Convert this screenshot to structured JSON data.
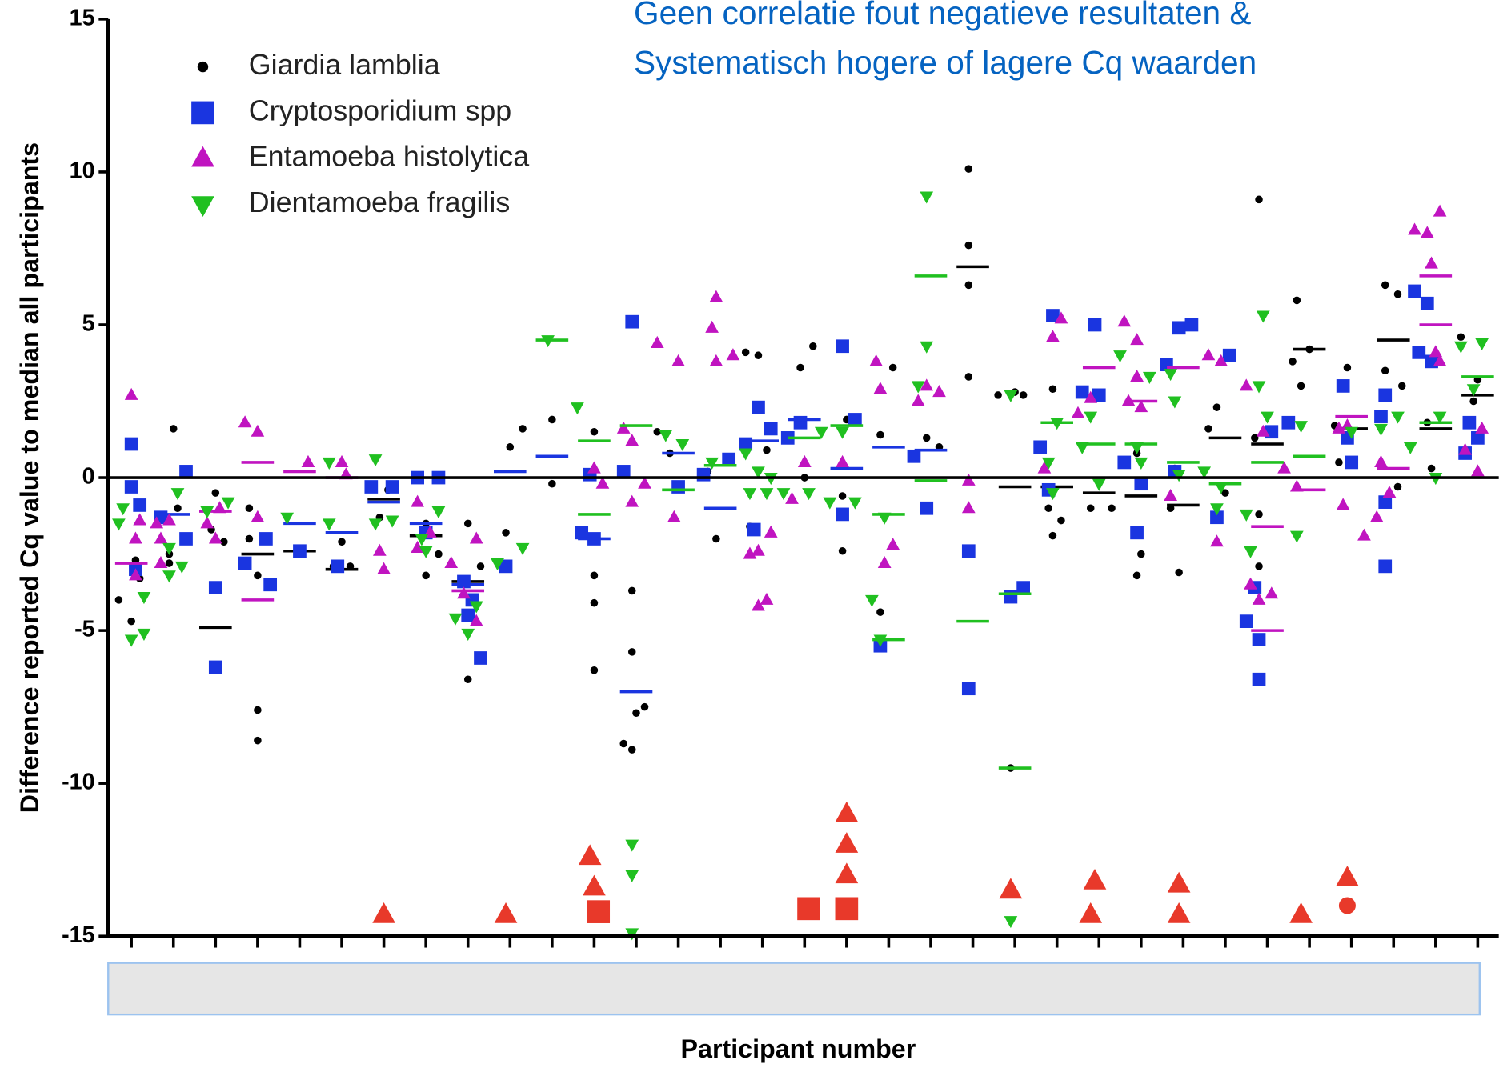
{
  "chart_data": {
    "type": "scatter",
    "annotation": [
      "Geen correlatie fout negatieve resultaten &",
      "Systematisch hogere of lagere Cq waarden"
    ],
    "xlabel": "Participant number",
    "ylabel": "Difference reported Cq value to median all participants",
    "xlim": [
      0.45,
      33.5
    ],
    "xticks": [
      1,
      2,
      3,
      4,
      5,
      6,
      7,
      8,
      9,
      10,
      11,
      12,
      13,
      14,
      15,
      16,
      17,
      18,
      19,
      20,
      21,
      22,
      23,
      24,
      25,
      26,
      27,
      28,
      29,
      30,
      31,
      32,
      33
    ],
    "ylim": [
      -15,
      15
    ],
    "yticks": [
      15,
      10,
      5,
      0,
      -5,
      -10,
      -15
    ],
    "reference_line": 0,
    "series": [
      {
        "name": "Giardia lamblia",
        "color": "#000000",
        "marker": "circle",
        "x": [
          0.7,
          1.0,
          1.2,
          1.1,
          2.0,
          1.9,
          2.1,
          1.9,
          2.9,
          3.0,
          3.2,
          4.0,
          4.0,
          3.8,
          3.8,
          4.0,
          6.0,
          5.8,
          6.2,
          6.9,
          7.1,
          8.0,
          8.0,
          8.3,
          9.0,
          9.0,
          9.3,
          9.9,
          10.0,
          10.3,
          11.0,
          11.0,
          12.0,
          12.0,
          12.0,
          12.0,
          12.7,
          12.9,
          12.9,
          12.9,
          13.2,
          13.0,
          13.5,
          13.8,
          14.9,
          14.7,
          15.6,
          15.9,
          15.7,
          16.1,
          16.9,
          17.2,
          17.0,
          17.9,
          18.0,
          17.9,
          18.8,
          19.1,
          18.8,
          19.9,
          20.2,
          20.9,
          20.9,
          20.9,
          20.9,
          21.6,
          22.0,
          21.9,
          22.2,
          22.9,
          22.9,
          23.1,
          22.8,
          23.8,
          24.3,
          24.9,
          25.0,
          24.9,
          25.9,
          25.8,
          25.7,
          26.8,
          27.0,
          26.6,
          27.8,
          27.8,
          27.8,
          27.7,
          28.7,
          28.8,
          28.6,
          29.0,
          29.9,
          29.7,
          29.6,
          30.8,
          31.1,
          30.8,
          31.2,
          31.1,
          32.0,
          31.8,
          31.9,
          32.6,
          32.9,
          33.0
        ],
        "values": [
          -4.0,
          -4.7,
          -3.3,
          -2.7,
          1.6,
          -2.8,
          -1.0,
          -2.5,
          -1.7,
          -0.5,
          -2.1,
          -7.6,
          -8.6,
          -1.0,
          -2.0,
          -3.2,
          -2.1,
          -2.9,
          -2.9,
          -1.3,
          -0.4,
          -1.5,
          -3.2,
          -2.5,
          -6.6,
          -1.5,
          -2.9,
          -1.8,
          1.0,
          1.6,
          1.9,
          -0.2,
          1.5,
          -4.1,
          -6.3,
          -3.2,
          -8.7,
          -5.7,
          -8.9,
          -3.7,
          -7.5,
          -7.7,
          1.5,
          0.8,
          -2.0,
          0.2,
          4.1,
          4.0,
          -1.6,
          0.9,
          3.6,
          4.3,
          0.0,
          -2.4,
          1.9,
          -0.6,
          -4.4,
          3.6,
          1.4,
          1.3,
          1.0,
          10.1,
          7.6,
          6.3,
          3.3,
          2.7,
          2.8,
          -9.5,
          2.7,
          2.9,
          -1.9,
          -1.4,
          -1.0,
          -1.0,
          -1.0,
          -3.2,
          -2.5,
          0.8,
          -3.1,
          0.3,
          -1.0,
          2.3,
          -0.5,
          1.6,
          9.1,
          -2.9,
          -1.2,
          1.3,
          5.8,
          3.0,
          3.8,
          4.2,
          3.6,
          0.5,
          1.7,
          6.3,
          6.0,
          3.5,
          3.0,
          -0.3,
          4.0,
          1.8,
          0.3,
          4.6,
          2.5,
          3.2
        ],
        "median_x": [
          3,
          4,
          5,
          6,
          7,
          8,
          9,
          21,
          22,
          23,
          24,
          25,
          26,
          27,
          28,
          29,
          30,
          31,
          32,
          33
        ],
        "median_values": [
          -4.9,
          -2.5,
          -2.4,
          -3.0,
          -0.7,
          -1.9,
          -3.4,
          6.9,
          -0.3,
          -0.3,
          -0.5,
          -0.6,
          -0.9,
          1.3,
          1.1,
          4.2,
          1.6,
          4.5,
          1.6,
          2.7
        ]
      },
      {
        "name": "Cryptosporidium spp",
        "color": "#1a35e0",
        "marker": "square",
        "x": [
          1.0,
          1.0,
          1.2,
          1.1,
          2.3,
          2.3,
          1.7,
          3.0,
          3.0,
          3.7,
          4.2,
          4.3,
          5.0,
          5.9,
          6.7,
          7.2,
          7.8,
          8.3,
          8.0,
          8.9,
          9.1,
          9.3,
          9.0,
          9.9,
          11.7,
          12.0,
          11.9,
          12.9,
          12.7,
          14.0,
          14.6,
          15.2,
          15.6,
          15.9,
          15.8,
          16.2,
          16.6,
          16.9,
          17.9,
          17.9,
          18.2,
          18.8,
          19.6,
          19.9,
          20.9,
          20.9,
          21.9,
          22.2,
          22.6,
          22.9,
          22.8,
          23.9,
          23.6,
          24.0,
          24.6,
          24.9,
          25.0,
          25.6,
          25.9,
          26.2,
          25.8,
          26.8,
          27.1,
          27.5,
          27.7,
          27.8,
          27.8,
          28.1,
          28.5,
          29.8,
          29.9,
          30.0,
          30.7,
          30.8,
          30.8,
          30.8,
          31.5,
          31.8,
          31.6,
          31.9,
          32.7,
          33.0,
          32.8
        ],
        "values": [
          1.1,
          -0.3,
          -0.9,
          -3.0,
          0.2,
          -2.0,
          -1.3,
          -3.6,
          -6.2,
          -2.8,
          -2.0,
          -3.5,
          -2.4,
          -2.9,
          -0.3,
          -0.3,
          0.0,
          0.0,
          -1.8,
          -3.4,
          -4.0,
          -5.9,
          -4.5,
          -2.9,
          -1.8,
          -2.0,
          0.1,
          5.1,
          0.2,
          -0.3,
          0.1,
          0.6,
          1.1,
          2.3,
          -1.7,
          1.6,
          1.3,
          1.8,
          4.3,
          -1.2,
          1.9,
          -5.5,
          0.7,
          -1.0,
          -2.4,
          -6.9,
          -3.9,
          -3.6,
          1.0,
          5.3,
          -0.4,
          5.0,
          2.8,
          2.7,
          0.5,
          -1.8,
          -0.2,
          3.7,
          4.9,
          5.0,
          0.2,
          -1.3,
          4.0,
          -4.7,
          -3.6,
          -5.3,
          -6.6,
          1.5,
          1.8,
          3.0,
          1.3,
          0.5,
          2.0,
          2.7,
          -0.8,
          -2.9,
          6.1,
          5.7,
          4.1,
          3.8,
          0.8,
          1.3,
          1.8
        ],
        "median_x": [
          2,
          5,
          6,
          7,
          8,
          9,
          10,
          11,
          12,
          13,
          14,
          15,
          16,
          17,
          18,
          19,
          20
        ],
        "median_values": [
          -1.2,
          -1.5,
          -1.8,
          -0.8,
          -1.5,
          -3.5,
          0.2,
          0.7,
          -2.0,
          -7.0,
          0.8,
          -1.0,
          1.2,
          1.9,
          0.3,
          1.0,
          0.9
        ]
      },
      {
        "name": "Entamoeba histolytica",
        "color": "#c014c0",
        "marker": "triangle-up",
        "x": [
          1.0,
          1.1,
          1.2,
          1.1,
          1.7,
          1.9,
          1.6,
          1.7,
          2.8,
          3.1,
          3.0,
          3.7,
          4.0,
          4.0,
          5.2,
          6.0,
          6.1,
          6.9,
          7.0,
          7.8,
          7.8,
          8.1,
          8.6,
          8.9,
          9.2,
          9.2,
          12.0,
          12.2,
          12.7,
          12.9,
          12.9,
          13.2,
          13.5,
          14.0,
          13.9,
          14.9,
          14.8,
          14.9,
          15.3,
          15.7,
          15.9,
          16.1,
          16.2,
          15.9,
          16.7,
          17.0,
          17.9,
          18.7,
          18.8,
          18.9,
          19.1,
          19.7,
          19.9,
          20.2,
          20.9,
          20.9,
          22.9,
          23.1,
          22.7,
          23.5,
          23.8,
          24.6,
          24.9,
          24.9,
          25.0,
          24.7,
          25.7,
          26.6,
          26.9,
          26.8,
          27.5,
          27.6,
          27.8,
          28.1,
          27.9,
          28.7,
          28.4,
          29.8,
          29.7,
          29.9,
          30.3,
          30.6,
          30.9,
          30.7,
          31.5,
          31.8,
          32.1,
          31.9,
          32.0,
          32.1,
          32.7,
          33.0,
          33.1
        ],
        "values": [
          2.7,
          -2.0,
          -1.4,
          -3.2,
          -2.0,
          -1.4,
          -1.5,
          -2.8,
          -1.5,
          -1.0,
          -2.0,
          1.8,
          1.5,
          -1.3,
          0.5,
          0.5,
          0.1,
          -2.4,
          -3.0,
          -2.3,
          -0.8,
          -1.8,
          -2.8,
          -3.8,
          -4.7,
          -2.0,
          0.3,
          -0.2,
          1.6,
          -0.8,
          1.2,
          -0.2,
          4.4,
          3.8,
          -1.3,
          5.9,
          4.9,
          3.8,
          4.0,
          -2.5,
          -2.4,
          -4.0,
          -1.8,
          -4.2,
          -0.7,
          0.5,
          0.5,
          3.8,
          2.9,
          -2.8,
          -2.2,
          2.5,
          3.0,
          2.8,
          -0.1,
          -1.0,
          4.6,
          5.2,
          0.3,
          2.1,
          2.6,
          5.1,
          4.5,
          3.3,
          2.3,
          2.5,
          -0.6,
          4.0,
          3.8,
          -2.1,
          3.0,
          -3.5,
          -4.0,
          -3.8,
          1.5,
          -0.3,
          0.3,
          -0.9,
          1.6,
          1.7,
          -1.9,
          -1.3,
          -0.5,
          0.5,
          8.1,
          8.0,
          8.7,
          7.0,
          4.1,
          3.8,
          0.9,
          0.2,
          1.6
        ],
        "median_x": [
          1,
          3,
          4,
          4,
          5,
          6,
          9,
          24,
          25,
          26,
          28,
          28,
          29,
          30,
          31,
          32,
          32
        ],
        "median_values": [
          -2.8,
          -1.1,
          0.5,
          -4.0,
          0.2,
          0.0,
          -3.7,
          3.6,
          2.5,
          3.6,
          -1.6,
          -5.0,
          -0.4,
          2.0,
          0.3,
          6.6,
          5.0
        ]
      },
      {
        "name": "Dientamoeba fragilis",
        "color": "#20c020",
        "marker": "triangle-down",
        "x": [
          0.7,
          1.0,
          1.3,
          1.3,
          0.8,
          1.9,
          1.9,
          2.2,
          2.1,
          2.8,
          3.3,
          4.7,
          5.7,
          5.7,
          6.8,
          6.8,
          7.2,
          7.9,
          8.0,
          8.3,
          8.7,
          9.0,
          9.2,
          9.7,
          10.3,
          10.9,
          11.6,
          12.9,
          12.9,
          12.9,
          13.7,
          14.1,
          14.8,
          15.6,
          15.7,
          15.9,
          16.1,
          16.2,
          16.5,
          17.1,
          17.4,
          17.6,
          17.9,
          18.2,
          18.6,
          18.9,
          18.8,
          19.9,
          19.9,
          19.7,
          21.9,
          21.9,
          22.8,
          23.0,
          22.9,
          23.6,
          23.8,
          24.0,
          24.5,
          24.9,
          25.0,
          25.2,
          25.8,
          25.9,
          25.7,
          26.5,
          26.9,
          26.8,
          27.5,
          27.8,
          27.9,
          27.6,
          28.0,
          28.7,
          28.8,
          30.0,
          30.7,
          31.1,
          31.4,
          32.0,
          32.1,
          32.6,
          33.1,
          32.9
        ],
        "values": [
          -1.5,
          -5.3,
          -5.1,
          -3.9,
          -1.0,
          -2.3,
          -3.2,
          -2.9,
          -0.5,
          -1.1,
          -0.8,
          -1.3,
          0.5,
          -1.5,
          0.6,
          -1.5,
          -1.4,
          -2.0,
          -2.4,
          -1.1,
          -4.6,
          -5.1,
          -4.2,
          -2.8,
          -2.3,
          4.5,
          2.3,
          -12.0,
          -13.0,
          -14.9,
          1.4,
          1.1,
          0.5,
          0.8,
          -0.5,
          0.2,
          -0.5,
          0.0,
          -0.5,
          -0.5,
          1.5,
          -0.8,
          1.5,
          -0.8,
          -4.0,
          -1.3,
          -5.3,
          9.2,
          4.3,
          3.0,
          2.7,
          -14.5,
          0.5,
          1.8,
          -0.5,
          1.0,
          2.0,
          -0.2,
          4.0,
          1.0,
          0.5,
          3.3,
          2.5,
          0.1,
          3.4,
          0.2,
          -0.3,
          -1.0,
          -1.2,
          3.0,
          5.3,
          -2.4,
          2.0,
          -1.9,
          1.7,
          1.5,
          1.6,
          2.0,
          1.0,
          0.0,
          2.0,
          4.3,
          4.4,
          2.9
        ],
        "median_x": [
          11,
          12,
          12,
          13,
          14,
          15,
          17,
          18,
          19,
          19,
          20,
          20,
          21,
          22,
          22,
          23,
          24,
          25,
          26,
          27,
          28,
          29,
          32,
          33
        ],
        "median_values": [
          4.5,
          1.2,
          -1.2,
          1.7,
          -0.4,
          0.4,
          1.3,
          1.7,
          -1.2,
          -5.3,
          6.6,
          -0.1,
          -4.7,
          -3.8,
          -9.5,
          1.8,
          1.1,
          1.1,
          0.5,
          -0.2,
          0.5,
          0.7,
          1.8,
          3.3
        ]
      },
      {
        "color": "#e8392a",
        "marker": "triangle-up",
        "x": [
          7.0,
          9.9,
          11.9,
          12.0,
          18.0,
          18.0,
          18.0,
          21.9,
          23.9,
          23.8,
          25.9,
          25.9,
          28.8,
          29.9
        ],
        "values": [
          -14.3,
          -14.3,
          -12.4,
          -13.4,
          -11.0,
          -12.0,
          -13.0,
          -13.5,
          -13.2,
          -14.3,
          -13.3,
          -14.3,
          -14.3,
          -13.1
        ]
      },
      {
        "color": "#e8392a",
        "marker": "square",
        "x": [
          12.1,
          17.1,
          18.0
        ],
        "values": [
          -14.2,
          -14.1,
          -14.1
        ]
      },
      {
        "color": "#e8392a",
        "marker": "circle",
        "x": [
          29.9
        ],
        "values": [
          -14.0
        ]
      }
    ]
  }
}
